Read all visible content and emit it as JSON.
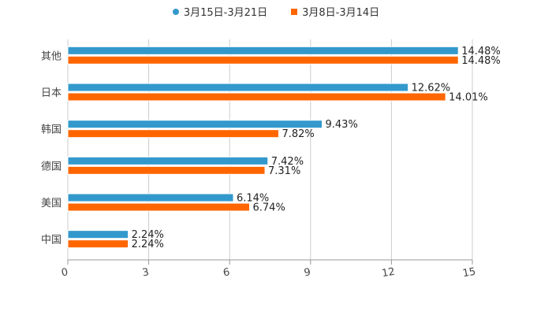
{
  "legend": [
    {
      "label": "3月15日-3月21日",
      "color": "#3399cc",
      "marker": "circle"
    },
    {
      "label": "3月8日-3月14日",
      "color": "#ff6600",
      "marker": "square"
    }
  ],
  "chart_data": {
    "type": "bar",
    "orientation": "horizontal",
    "title": "",
    "xlabel": "",
    "ylabel": "",
    "categories": [
      "其他",
      "日本",
      "韩国",
      "德国",
      "美国",
      "中国"
    ],
    "series": [
      {
        "name": "3月15日-3月21日",
        "color": "#3399cc",
        "values": [
          14.48,
          12.62,
          9.43,
          7.42,
          6.14,
          2.24
        ]
      },
      {
        "name": "3月8日-3月14日",
        "color": "#ff6600",
        "values": [
          14.48,
          14.01,
          7.82,
          7.31,
          6.74,
          2.24
        ]
      }
    ],
    "data_labels": {
      "series_0": [
        "14.48%",
        "12.62%",
        "9.43%",
        "7.42%",
        "6.14%",
        "2.24%"
      ],
      "series_1": [
        "14.48%",
        "14.01%",
        "7.82%",
        "7.31%",
        "6.74%",
        "2.24%"
      ]
    },
    "xlim": [
      0,
      15
    ],
    "xticks": [
      "0",
      "3",
      "6",
      "9",
      "12",
      "15"
    ],
    "grid": true,
    "legend_position": "top"
  }
}
